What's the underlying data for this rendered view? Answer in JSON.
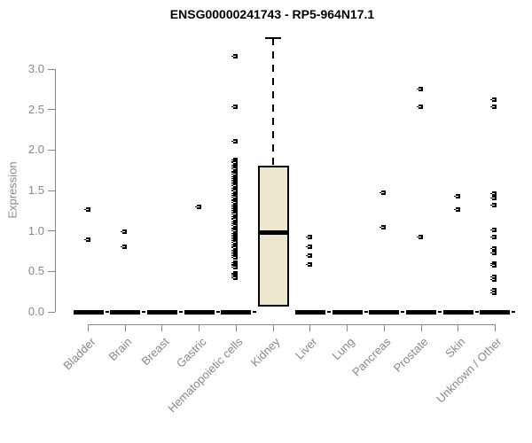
{
  "chart_data": {
    "type": "box",
    "title": "ENSG00000241743 - RP5-964N17.1",
    "ylabel": "Expression",
    "yticks": [
      0.0,
      0.5,
      1.0,
      1.5,
      2.0,
      2.5,
      3.0
    ],
    "ylim": [
      0,
      3.45
    ],
    "grid": false,
    "legend": "none",
    "categories": [
      "Bladder",
      "Brain",
      "Breast",
      "Gastric",
      "Hematopoietic cells",
      "Kidney",
      "Liver",
      "Lung",
      "Pancreas",
      "Prostate",
      "Skin",
      "Unknown / Other"
    ],
    "series": [
      {
        "category": "Bladder",
        "box": {
          "q1": 0,
          "median": 0,
          "q3": 0,
          "upper_whisker": 0
        },
        "points": [
          1.26,
          0.89
        ]
      },
      {
        "category": "Brain",
        "box": {
          "q1": 0,
          "median": 0,
          "q3": 0,
          "upper_whisker": 0
        },
        "points": [
          0.99,
          0.81
        ]
      },
      {
        "category": "Breast",
        "box": {
          "q1": 0,
          "median": 0,
          "q3": 0,
          "upper_whisker": 0
        },
        "points": []
      },
      {
        "category": "Gastric",
        "box": {
          "q1": 0,
          "median": 0,
          "q3": 0,
          "upper_whisker": 0
        },
        "points": [
          1.3
        ]
      },
      {
        "category": "Hematopoietic cells",
        "box": {
          "q1": 0,
          "median": 0,
          "q3": 0,
          "upper_whisker": 0
        },
        "points": [
          3.16,
          2.53,
          2.11,
          1.88,
          1.86,
          1.84,
          1.81,
          1.79,
          1.77,
          1.74,
          1.72,
          1.7,
          1.67,
          1.65,
          1.63,
          1.6,
          1.58,
          1.56,
          1.53,
          1.51,
          1.49,
          1.46,
          1.44,
          1.42,
          1.39,
          1.37,
          1.35,
          1.32,
          1.3,
          1.28,
          1.25,
          1.23,
          1.21,
          1.18,
          1.16,
          1.14,
          1.11,
          1.09,
          1.07,
          1.04,
          1.02,
          1.0,
          0.97,
          0.95,
          0.93,
          0.9,
          0.88,
          0.86,
          0.83,
          0.81,
          0.79,
          0.76,
          0.74,
          0.72,
          0.69,
          0.67,
          0.61,
          0.59,
          0.57,
          0.55,
          0.48,
          0.46,
          0.44,
          0.42
        ]
      },
      {
        "category": "Kidney",
        "box": {
          "q1": 0.07,
          "median": 0.98,
          "q3": 1.81,
          "upper_whisker": 3.38
        },
        "points": []
      },
      {
        "category": "Liver",
        "box": {
          "q1": 0,
          "median": 0,
          "q3": 0,
          "upper_whisker": 0
        },
        "points": [
          0.92,
          0.81,
          0.7,
          0.59
        ]
      },
      {
        "category": "Lung",
        "box": {
          "q1": 0,
          "median": 0,
          "q3": 0,
          "upper_whisker": 0
        },
        "points": []
      },
      {
        "category": "Pancreas",
        "box": {
          "q1": 0,
          "median": 0,
          "q3": 0,
          "upper_whisker": 0
        },
        "points": [
          1.47,
          1.05
        ]
      },
      {
        "category": "Prostate",
        "box": {
          "q1": 0,
          "median": 0,
          "q3": 0,
          "upper_whisker": 0
        },
        "points": [
          2.75,
          2.53,
          0.93
        ]
      },
      {
        "category": "Skin",
        "box": {
          "q1": 0,
          "median": 0,
          "q3": 0,
          "upper_whisker": 0
        },
        "points": [
          1.43,
          1.26
        ]
      },
      {
        "category": "Unknown / Other",
        "box": {
          "q1": 0,
          "median": 0,
          "q3": 0,
          "upper_whisker": 0
        },
        "points": [
          2.62,
          2.54,
          1.46,
          1.41,
          1.32,
          1.01,
          0.92,
          0.78,
          0.73,
          0.6,
          0.57,
          0.43,
          0.4,
          0.27,
          0.24
        ]
      }
    ],
    "colors": {
      "box_fill": "#ECE6CC",
      "box_border": "#000000",
      "median": "#000000",
      "point": "#000000",
      "zero_bar": "#000000",
      "axis": "#888888",
      "tick_text": "#888888",
      "title_text": "#000000",
      "background": "#ffffff"
    }
  }
}
